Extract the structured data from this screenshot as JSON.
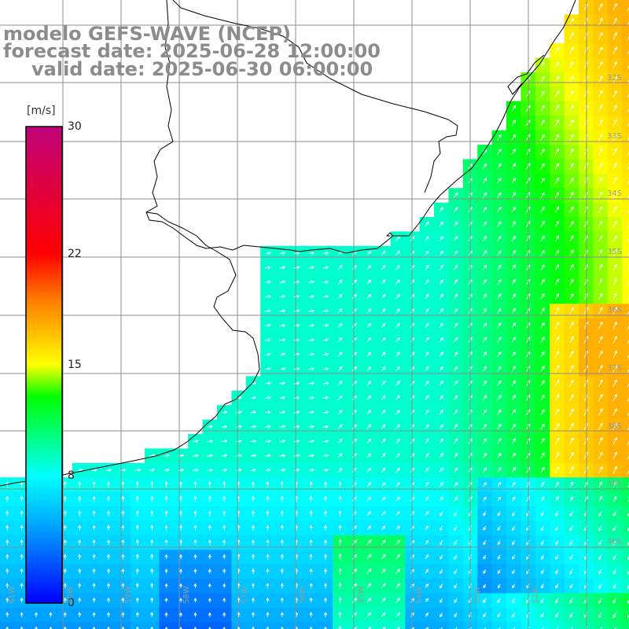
{
  "title": {
    "model": "modelo GEFS-WAVE (NCEP)",
    "forecast": "forecast date: 2025-06-28 12:00:00",
    "valid": "valid date: 2025-06-30 06:00:00"
  },
  "colorbar": {
    "unit": "[m/s]",
    "ticks": [
      "30",
      "22",
      "15",
      "8",
      "0"
    ],
    "tick_values": [
      30,
      22,
      15,
      8,
      0
    ],
    "min": 0,
    "max": 30,
    "colors": [
      "#0000ff",
      "#00a8ff",
      "#00ffff",
      "#00ff00",
      "#ffff00",
      "#ff8000",
      "#ff0000",
      "#c0007a"
    ],
    "color_stops": [
      0,
      5,
      8,
      13,
      15,
      19,
      22,
      30
    ]
  },
  "lat_labels": [
    "32S",
    "33S",
    "34S",
    "35S",
    "36S",
    "37S",
    "38S",
    "39S",
    "40S"
  ],
  "lon_labels": [
    "61W",
    "60W",
    "59W",
    "58W",
    "57W",
    "56W",
    "55W",
    "54W",
    "53W",
    "52W"
  ],
  "colors": {
    "land": "#ffffff",
    "grid": "#8c8c8c",
    "coast": "#000000",
    "title": "#8c8c8c",
    "arrow": "#ffffff"
  }
}
